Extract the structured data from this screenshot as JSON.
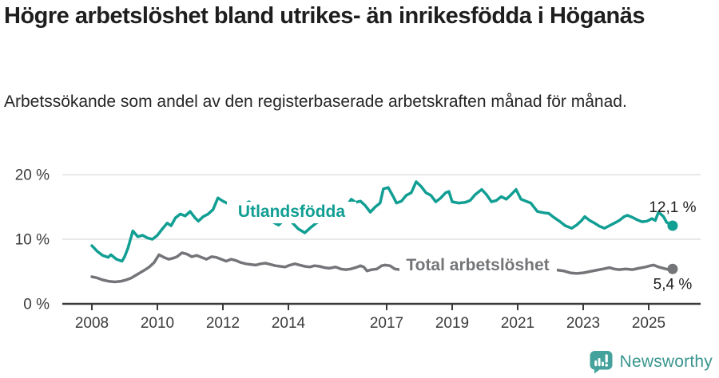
{
  "header": {
    "title": "Högre arbetslöshet bland utrikes- än inrikesfödda i Höganäs",
    "subtitle": "Arbetssökande som andel av den registerbaserade arbetskraften månad för månad."
  },
  "footer": {
    "brand": "Newsworthy",
    "brand_color": "#3a968f",
    "icon_color": "#44a19b"
  },
  "colors": {
    "accent_teal": "#119e93",
    "line_gray": "#747578",
    "axis_dark": "#3b3b3b",
    "gridline": "#d9d9d9",
    "text_dark": "#1e1e1e"
  },
  "chart_data": {
    "type": "line",
    "title": "Högre arbetslöshet bland utrikes- än inrikesfödda i Höganäs",
    "subtitle": "Arbetssökande som andel av den registerbaserade arbetskraften månad för månad.",
    "xlabel": "",
    "ylabel": "",
    "unit": "%",
    "grid": "horizontal",
    "legend_position": "inline-labels",
    "x_range": [
      2008.0,
      2025.73
    ],
    "ylim": [
      0,
      22
    ],
    "x_ticks": [
      "2008",
      "2010",
      "2012",
      "2014",
      "2017",
      "2019",
      "2021",
      "2023",
      "2025"
    ],
    "y_ticks": [
      {
        "label": "0 %",
        "value": 0
      },
      {
        "label": "10 %",
        "value": 10
      },
      {
        "label": "20 %",
        "value": 20
      }
    ],
    "series": [
      {
        "name": "Utlandsfödda",
        "color": "#119e93",
        "end_label": "12,1 %",
        "end_value": 12.1,
        "points": [
          [
            2008.0,
            9.0
          ],
          [
            2008.17,
            8.1
          ],
          [
            2008.33,
            7.5
          ],
          [
            2008.5,
            7.2
          ],
          [
            2008.58,
            7.6
          ],
          [
            2008.75,
            6.9
          ],
          [
            2008.92,
            6.6
          ],
          [
            2009.0,
            7.3
          ],
          [
            2009.1,
            8.6
          ],
          [
            2009.25,
            11.3
          ],
          [
            2009.4,
            10.4
          ],
          [
            2009.55,
            10.6
          ],
          [
            2009.7,
            10.2
          ],
          [
            2009.85,
            10.0
          ],
          [
            2010.0,
            10.6
          ],
          [
            2010.15,
            11.6
          ],
          [
            2010.3,
            12.5
          ],
          [
            2010.42,
            12.1
          ],
          [
            2010.55,
            13.3
          ],
          [
            2010.7,
            13.9
          ],
          [
            2010.85,
            13.6
          ],
          [
            2011.0,
            14.3
          ],
          [
            2011.15,
            13.3
          ],
          [
            2011.25,
            12.8
          ],
          [
            2011.4,
            13.5
          ],
          [
            2011.55,
            13.9
          ],
          [
            2011.7,
            14.6
          ],
          [
            2011.85,
            16.4
          ],
          [
            2012.0,
            15.9
          ],
          [
            2012.2,
            15.4
          ],
          [
            2012.4,
            15.0
          ],
          [
            2012.6,
            15.3
          ],
          [
            2012.8,
            15.8
          ],
          [
            2012.95,
            15.2
          ],
          [
            2013.1,
            14.6
          ],
          [
            2013.25,
            14.0
          ],
          [
            2013.4,
            13.2
          ],
          [
            2013.55,
            12.6
          ],
          [
            2013.7,
            12.2
          ],
          [
            2013.85,
            12.9
          ],
          [
            2014.0,
            13.1
          ],
          [
            2014.15,
            12.4
          ],
          [
            2014.3,
            11.6
          ],
          [
            2014.5,
            11.0
          ],
          [
            2014.7,
            11.9
          ],
          [
            2014.85,
            12.5
          ],
          [
            2015.0,
            12.9
          ],
          [
            2015.15,
            13.1
          ],
          [
            2015.3,
            13.7
          ],
          [
            2015.5,
            14.1
          ],
          [
            2015.65,
            14.3
          ],
          [
            2015.8,
            15.3
          ],
          [
            2015.92,
            16.2
          ],
          [
            2016.05,
            15.7
          ],
          [
            2016.2,
            15.9
          ],
          [
            2016.35,
            15.2
          ],
          [
            2016.5,
            14.2
          ],
          [
            2016.65,
            15.0
          ],
          [
            2016.8,
            15.6
          ],
          [
            2016.9,
            17.8
          ],
          [
            2017.05,
            18.0
          ],
          [
            2017.2,
            16.6
          ],
          [
            2017.3,
            15.6
          ],
          [
            2017.45,
            15.9
          ],
          [
            2017.6,
            16.8
          ],
          [
            2017.75,
            17.2
          ],
          [
            2017.9,
            18.9
          ],
          [
            2018.05,
            18.2
          ],
          [
            2018.2,
            17.2
          ],
          [
            2018.35,
            16.8
          ],
          [
            2018.5,
            15.8
          ],
          [
            2018.65,
            16.4
          ],
          [
            2018.8,
            17.2
          ],
          [
            2018.9,
            17.4
          ],
          [
            2019.0,
            15.8
          ],
          [
            2019.2,
            15.6
          ],
          [
            2019.4,
            15.7
          ],
          [
            2019.55,
            16.0
          ],
          [
            2019.7,
            16.9
          ],
          [
            2019.9,
            17.7
          ],
          [
            2020.05,
            16.9
          ],
          [
            2020.2,
            15.8
          ],
          [
            2020.35,
            16.0
          ],
          [
            2020.5,
            16.6
          ],
          [
            2020.65,
            16.2
          ],
          [
            2020.8,
            16.9
          ],
          [
            2020.95,
            17.7
          ],
          [
            2021.1,
            16.2
          ],
          [
            2021.25,
            15.9
          ],
          [
            2021.4,
            15.6
          ],
          [
            2021.6,
            14.3
          ],
          [
            2021.8,
            14.1
          ],
          [
            2021.95,
            14.0
          ],
          [
            2022.1,
            13.4
          ],
          [
            2022.3,
            12.7
          ],
          [
            2022.45,
            12.1
          ],
          [
            2022.65,
            11.7
          ],
          [
            2022.8,
            12.2
          ],
          [
            2022.95,
            12.9
          ],
          [
            2023.05,
            13.5
          ],
          [
            2023.2,
            12.9
          ],
          [
            2023.35,
            12.5
          ],
          [
            2023.5,
            12.0
          ],
          [
            2023.65,
            11.7
          ],
          [
            2023.8,
            12.1
          ],
          [
            2023.95,
            12.5
          ],
          [
            2024.1,
            12.9
          ],
          [
            2024.25,
            13.5
          ],
          [
            2024.35,
            13.7
          ],
          [
            2024.5,
            13.4
          ],
          [
            2024.65,
            13.0
          ],
          [
            2024.8,
            12.7
          ],
          [
            2024.95,
            12.8
          ],
          [
            2025.1,
            13.2
          ],
          [
            2025.2,
            12.9
          ],
          [
            2025.3,
            14.2
          ],
          [
            2025.45,
            13.5
          ],
          [
            2025.55,
            12.6
          ],
          [
            2025.73,
            12.1
          ]
        ]
      },
      {
        "name": "Total arbetslöshet",
        "color": "#747578",
        "end_label": "5,4 %",
        "end_value": 5.4,
        "points": [
          [
            2008.0,
            4.2
          ],
          [
            2008.17,
            4.0
          ],
          [
            2008.33,
            3.7
          ],
          [
            2008.5,
            3.5
          ],
          [
            2008.7,
            3.4
          ],
          [
            2008.9,
            3.5
          ],
          [
            2009.05,
            3.7
          ],
          [
            2009.2,
            4.0
          ],
          [
            2009.4,
            4.6
          ],
          [
            2009.6,
            5.2
          ],
          [
            2009.75,
            5.7
          ],
          [
            2009.9,
            6.4
          ],
          [
            2010.05,
            7.6
          ],
          [
            2010.2,
            7.2
          ],
          [
            2010.35,
            6.9
          ],
          [
            2010.5,
            7.1
          ],
          [
            2010.6,
            7.3
          ],
          [
            2010.75,
            7.9
          ],
          [
            2010.9,
            7.7
          ],
          [
            2011.05,
            7.3
          ],
          [
            2011.2,
            7.5
          ],
          [
            2011.35,
            7.2
          ],
          [
            2011.5,
            6.9
          ],
          [
            2011.65,
            7.3
          ],
          [
            2011.8,
            7.2
          ],
          [
            2011.95,
            6.9
          ],
          [
            2012.1,
            6.6
          ],
          [
            2012.25,
            6.9
          ],
          [
            2012.4,
            6.7
          ],
          [
            2012.55,
            6.4
          ],
          [
            2012.7,
            6.2
          ],
          [
            2012.85,
            6.1
          ],
          [
            2013.0,
            6.0
          ],
          [
            2013.15,
            6.2
          ],
          [
            2013.3,
            6.3
          ],
          [
            2013.45,
            6.1
          ],
          [
            2013.6,
            5.9
          ],
          [
            2013.75,
            5.8
          ],
          [
            2013.9,
            5.7
          ],
          [
            2014.05,
            6.0
          ],
          [
            2014.2,
            6.2
          ],
          [
            2014.35,
            6.0
          ],
          [
            2014.5,
            5.8
          ],
          [
            2014.65,
            5.7
          ],
          [
            2014.8,
            5.9
          ],
          [
            2014.95,
            5.8
          ],
          [
            2015.1,
            5.6
          ],
          [
            2015.25,
            5.5
          ],
          [
            2015.44,
            5.7
          ],
          [
            2015.6,
            5.4
          ],
          [
            2015.75,
            5.3
          ],
          [
            2015.9,
            5.4
          ],
          [
            2016.05,
            5.6
          ],
          [
            2016.2,
            5.9
          ],
          [
            2016.3,
            5.7
          ],
          [
            2016.4,
            5.1
          ],
          [
            2016.55,
            5.3
          ],
          [
            2016.7,
            5.4
          ],
          [
            2016.85,
            5.9
          ],
          [
            2016.95,
            6.0
          ],
          [
            2017.1,
            5.9
          ],
          [
            2017.25,
            5.4
          ],
          [
            2017.4,
            5.3
          ],
          [
            2017.7,
            5.3
          ],
          [
            2018.0,
            5.2
          ],
          [
            2018.4,
            5.3
          ],
          [
            2018.8,
            5.4
          ],
          [
            2019.2,
            5.3
          ],
          [
            2019.6,
            5.5
          ],
          [
            2020.0,
            5.8
          ],
          [
            2020.4,
            6.6
          ],
          [
            2020.8,
            6.4
          ],
          [
            2021.2,
            6.0
          ],
          [
            2021.6,
            5.6
          ],
          [
            2021.9,
            5.3
          ],
          [
            2022.1,
            5.3
          ],
          [
            2022.25,
            5.2
          ],
          [
            2022.4,
            5.1
          ],
          [
            2022.6,
            4.8
          ],
          [
            2022.8,
            4.7
          ],
          [
            2023.0,
            4.8
          ],
          [
            2023.2,
            5.0
          ],
          [
            2023.4,
            5.2
          ],
          [
            2023.6,
            5.4
          ],
          [
            2023.8,
            5.6
          ],
          [
            2023.95,
            5.4
          ],
          [
            2024.1,
            5.3
          ],
          [
            2024.3,
            5.4
          ],
          [
            2024.5,
            5.3
          ],
          [
            2024.7,
            5.5
          ],
          [
            2024.9,
            5.7
          ],
          [
            2025.05,
            5.9
          ],
          [
            2025.15,
            6.0
          ],
          [
            2025.3,
            5.7
          ],
          [
            2025.45,
            5.5
          ],
          [
            2025.6,
            5.3
          ],
          [
            2025.73,
            5.4
          ]
        ]
      }
    ]
  }
}
